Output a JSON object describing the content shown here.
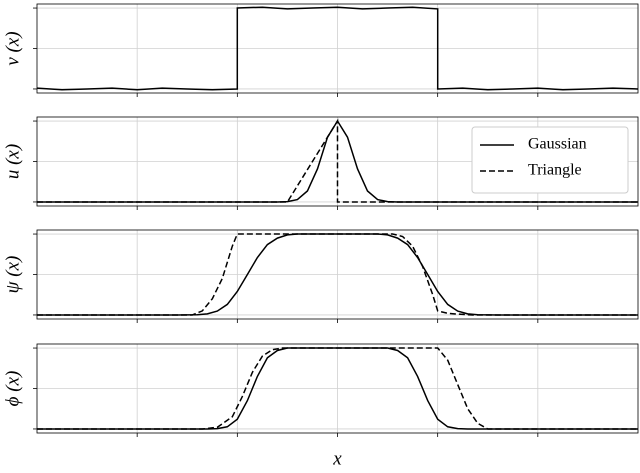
{
  "chart_data": [
    {
      "type": "line",
      "ylabel": "v (x)",
      "xlim": [
        -3,
        3
      ],
      "ylim": [
        -0.05,
        1.05
      ],
      "xticks": [
        -2,
        -1,
        0,
        1,
        2
      ],
      "yticks": [
        0,
        0.5,
        1
      ],
      "grid": true,
      "series": [
        {
          "color": "#000000",
          "linestyle": "solid",
          "x": [
            -3,
            -2.75,
            -2.5,
            -2.25,
            -2,
            -1.75,
            -1.5,
            -1.25,
            -1,
            -1,
            -0.75,
            -0.5,
            -0.25,
            0,
            0.25,
            0.5,
            0.75,
            1,
            1,
            1.25,
            1.5,
            1.75,
            2,
            2.25,
            2.5,
            2.75,
            3
          ],
          "values": [
            0.01,
            -0.01,
            0.0,
            0.01,
            -0.01,
            0.01,
            0.0,
            -0.01,
            0.0,
            1.0,
            1.01,
            0.99,
            1.0,
            1.01,
            0.99,
            1.0,
            1.01,
            0.99,
            0.0,
            0.01,
            -0.01,
            0.0,
            0.01,
            -0.01,
            0.0,
            0.01,
            0.0
          ]
        }
      ]
    },
    {
      "type": "line",
      "ylabel": "u (x)",
      "xlim": [
        -3,
        3
      ],
      "ylim": [
        -0.05,
        1.05
      ],
      "xticks": [
        -2,
        -1,
        0,
        1,
        2
      ],
      "yticks": [
        0,
        0.5,
        1
      ],
      "grid": true,
      "legend": "upper right",
      "series": [
        {
          "name": "Gaussian",
          "color": "#000000",
          "linestyle": "solid",
          "x": [
            -3,
            -0.6,
            -0.5,
            -0.4,
            -0.3,
            -0.2,
            -0.1,
            0,
            0.1,
            0.2,
            0.3,
            0.4,
            0.5,
            0.6,
            3
          ],
          "values": [
            0,
            0.0,
            0.004,
            0.029,
            0.135,
            0.41,
            0.8,
            1,
            0.8,
            0.41,
            0.135,
            0.029,
            0.004,
            0.0,
            0
          ]
        },
        {
          "name": "Triangle",
          "color": "#000000",
          "linestyle": "dashed",
          "x": [
            -3,
            -0.5,
            0,
            0,
            3
          ],
          "values": [
            0,
            0,
            1,
            0,
            0
          ]
        }
      ]
    },
    {
      "type": "line",
      "ylabel": "ψ (x)",
      "xlim": [
        -3,
        3
      ],
      "ylim": [
        -0.05,
        1.05
      ],
      "xticks": [
        -2,
        -1,
        0,
        1,
        2
      ],
      "yticks": [
        0,
        0.5,
        1
      ],
      "grid": true,
      "series": [
        {
          "color": "#000000",
          "linestyle": "solid",
          "x": [
            -3,
            -1.6,
            -1.4,
            -1.3,
            -1.2,
            -1.1,
            -1.0,
            -0.9,
            -0.8,
            -0.7,
            -0.6,
            -0.5,
            -0.4,
            0.4,
            0.5,
            0.6,
            0.7,
            0.8,
            0.9,
            1.0,
            1.1,
            1.2,
            1.3,
            1.4,
            1.6,
            3
          ],
          "values": [
            0,
            0.0,
            0.003,
            0.013,
            0.048,
            0.13,
            0.29,
            0.5,
            0.71,
            0.87,
            0.95,
            0.99,
            1,
            1,
            0.99,
            0.95,
            0.87,
            0.71,
            0.5,
            0.29,
            0.13,
            0.048,
            0.013,
            0.003,
            0.0,
            0
          ]
        },
        {
          "color": "#000000",
          "linestyle": "dashed",
          "x": [
            -3,
            -1.45,
            -1.35,
            -1.25,
            -1.15,
            -1.05,
            -1.0,
            0.55,
            0.65,
            0.75,
            0.85,
            0.95,
            1.0,
            1.1,
            1.2,
            1.35,
            3
          ],
          "values": [
            0,
            0,
            0.05,
            0.2,
            0.45,
            0.85,
            1,
            1,
            0.97,
            0.85,
            0.6,
            0.25,
            0.05,
            0.02,
            0.01,
            0.0,
            0
          ]
        }
      ]
    },
    {
      "type": "line",
      "ylabel": "ϕ (x)",
      "xlabel": "x",
      "xlim": [
        -3,
        3
      ],
      "ylim": [
        -0.05,
        1.05
      ],
      "xticks": [
        -2,
        -1,
        0,
        1,
        2
      ],
      "yticks": [
        0,
        0.5,
        1
      ],
      "grid": true,
      "series": [
        {
          "color": "#000000",
          "linestyle": "solid",
          "x": [
            -3,
            -1.3,
            -1.2,
            -1.1,
            -1.0,
            -0.9,
            -0.8,
            -0.7,
            -0.6,
            -0.5,
            0.5,
            0.6,
            0.7,
            0.8,
            0.9,
            1.0,
            1.1,
            1.2,
            1.3,
            3
          ],
          "values": [
            0,
            0.0,
            0.004,
            0.027,
            0.12,
            0.35,
            0.65,
            0.88,
            0.97,
            1,
            1,
            0.97,
            0.88,
            0.65,
            0.35,
            0.12,
            0.027,
            0.004,
            0.0,
            0
          ]
        },
        {
          "color": "#000000",
          "linestyle": "dashed",
          "x": [
            -3,
            -1.35,
            -1.2,
            -1.05,
            -0.95,
            -0.85,
            -0.75,
            -0.65,
            -0.55,
            1.0,
            1.1,
            1.2,
            1.3,
            1.4,
            1.5,
            3
          ],
          "values": [
            0,
            0,
            0.02,
            0.15,
            0.4,
            0.7,
            0.9,
            0.98,
            1,
            1,
            0.85,
            0.55,
            0.25,
            0.07,
            0,
            0
          ]
        }
      ]
    }
  ]
}
